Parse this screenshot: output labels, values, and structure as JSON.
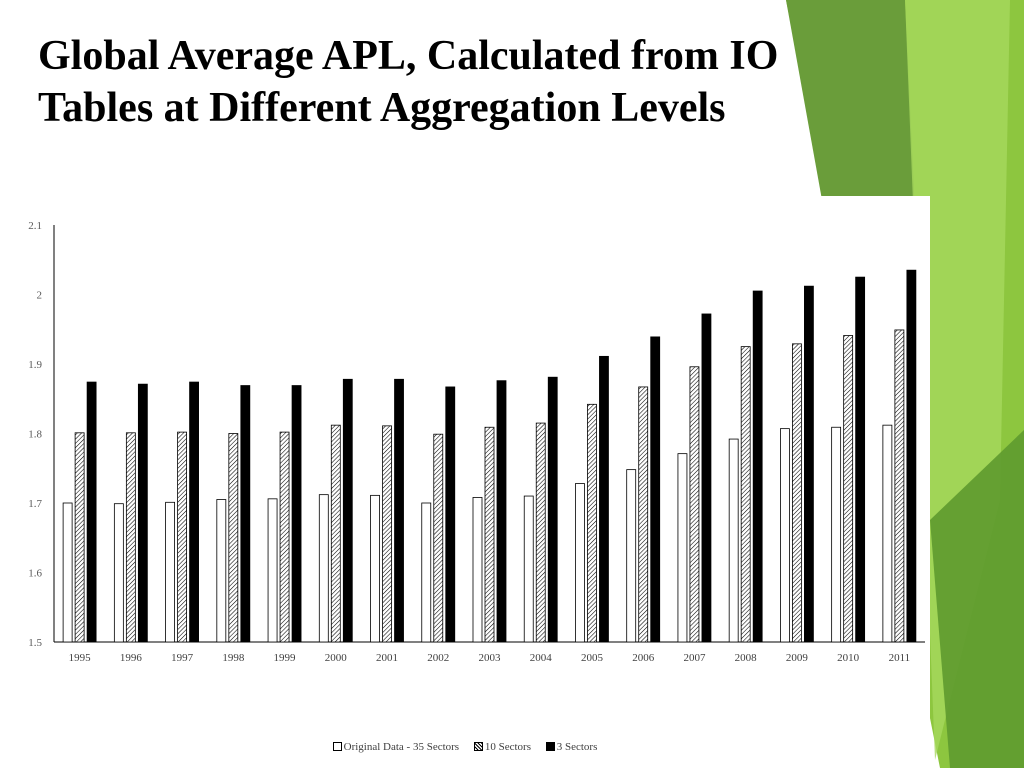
{
  "page": {
    "title_lines": [
      "Global Average APL, Calculated from IO",
      "Tables at Different Aggregation Levels"
    ],
    "accent_colors": [
      "#8dc63f",
      "#6a9d3a",
      "#a6d85e"
    ]
  },
  "chart_data": {
    "type": "bar",
    "title": "",
    "xlabel": "",
    "ylabel": "",
    "ylim": [
      1.5,
      2.1
    ],
    "yticks": [
      "1.5",
      "1.6",
      "1.7",
      "1.8",
      "1.9",
      "2",
      "2.1"
    ],
    "categories": [
      "1995",
      "1996",
      "1997",
      "1998",
      "1999",
      "2000",
      "2001",
      "2002",
      "2003",
      "2004",
      "2005",
      "2006",
      "2007",
      "2008",
      "2009",
      "2010",
      "2011"
    ],
    "series": [
      {
        "name": "Original Data - 35 Sectors",
        "fill": "white",
        "values": [
          1.7,
          1.699,
          1.701,
          1.705,
          1.706,
          1.712,
          1.711,
          1.7,
          1.708,
          1.71,
          1.728,
          1.748,
          1.771,
          1.792,
          1.807,
          1.809,
          1.812
        ]
      },
      {
        "name": "10 Sectors",
        "fill": "hatched",
        "values": [
          1.801,
          1.801,
          1.802,
          1.8,
          1.802,
          1.812,
          1.811,
          1.799,
          1.809,
          1.815,
          1.842,
          1.867,
          1.896,
          1.925,
          1.929,
          1.941,
          1.949
        ]
      },
      {
        "name": "3 Sectors",
        "fill": "black",
        "values": [
          1.874,
          1.871,
          1.874,
          1.869,
          1.869,
          1.878,
          1.878,
          1.867,
          1.876,
          1.881,
          1.911,
          1.939,
          1.972,
          2.005,
          2.012,
          2.025,
          2.035
        ]
      }
    ],
    "grid": false,
    "legend_position": "bottom"
  }
}
